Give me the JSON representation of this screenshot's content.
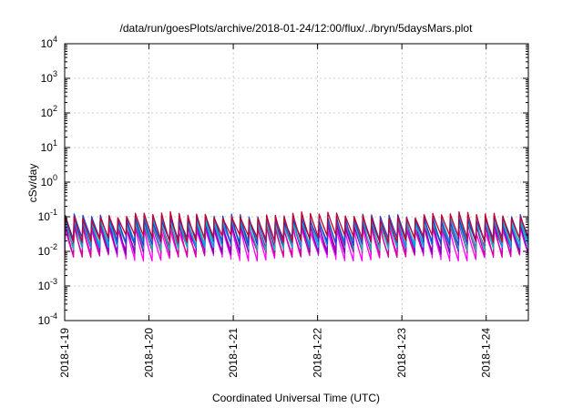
{
  "chart_data": {
    "type": "line",
    "title": "/data/run/goesPlots/archive/2018-01-24/12:00/flux/../bryn/5daysMars.plot",
    "xlabel": "Coordinated Universal Time (UTC)",
    "ylabel": "cSv/day",
    "yscale": "log",
    "ylim": [
      0.0001,
      10000
    ],
    "xlim_days": [
      "2018-01-19T00:00",
      "2018-01-24T12:00"
    ],
    "grid": true,
    "legend": "none",
    "yticks": [
      {
        "base": "10",
        "exp": "-4"
      },
      {
        "base": "10",
        "exp": "-3"
      },
      {
        "base": "10",
        "exp": "-2"
      },
      {
        "base": "10",
        "exp": "-1"
      },
      {
        "base": "10",
        "exp": "0"
      },
      {
        "base": "10",
        "exp": "1"
      },
      {
        "base": "10",
        "exp": "2"
      },
      {
        "base": "10",
        "exp": "3"
      },
      {
        "base": "10",
        "exp": "4"
      }
    ],
    "xticks": [
      "2018-1-19",
      "2018-1-20",
      "2018-1-21",
      "2018-1-22",
      "2018-1-23",
      "2018-1-24"
    ],
    "pattern": {
      "description_free": true,
      "cycles_per_day": 9.6,
      "peak_value": 0.1,
      "trough_value": 0.02
    },
    "series": [
      {
        "color": "#ff00ff",
        "peak": 0.045,
        "trough": 0.007
      },
      {
        "color": "#d0009a",
        "peak": 0.055,
        "trough": 0.009
      },
      {
        "color": "#8000c0",
        "peak": 0.065,
        "trough": 0.011
      },
      {
        "color": "#20b8b0",
        "peak": 0.075,
        "trough": 0.014
      },
      {
        "color": "#00a0e0",
        "peak": 0.085,
        "trough": 0.017
      },
      {
        "color": "#2040d0",
        "peak": 0.095,
        "trough": 0.02
      },
      {
        "color": "#c00030",
        "peak": 0.11,
        "trough": 0.024
      }
    ]
  }
}
